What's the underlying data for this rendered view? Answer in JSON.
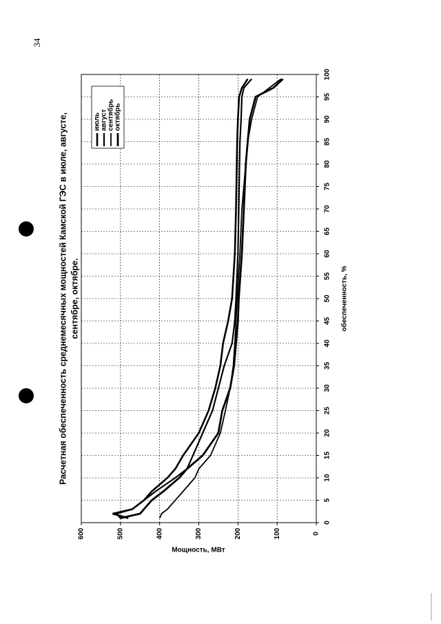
{
  "page_number": "34",
  "chart_data": {
    "type": "line",
    "title": [
      "Расчетная обеспеченность среднемесячных мощностей Камской ГЭС в июле, августе,",
      "сентябре, октябре."
    ],
    "x_label": "обеспеченность, %",
    "y_label": "Мощность, МВт",
    "x": [
      1,
      2,
      3,
      5,
      7,
      10,
      12,
      15,
      20,
      25,
      30,
      35,
      40,
      45,
      50,
      60,
      70,
      80,
      85,
      90,
      95,
      97,
      99
    ],
    "series": [
      {
        "name": "июль",
        "color": "#000000",
        "values": [
          480,
          520,
          470,
          440,
          420,
          380,
          360,
          340,
          300,
          275,
          258,
          245,
          238,
          225,
          215,
          208,
          205,
          203,
          202,
          200,
          197,
          190,
          175
        ]
      },
      {
        "name": "август",
        "color": "#000000",
        "values": [
          500,
          510,
          470,
          440,
          410,
          360,
          330,
          315,
          290,
          265,
          250,
          235,
          215,
          208,
          205,
          200,
          198,
          196,
          195,
          192,
          190,
          185,
          165
        ]
      },
      {
        "name": "сентябрь",
        "color": "#000000",
        "values": [
          400,
          395,
          380,
          360,
          340,
          310,
          300,
          270,
          245,
          232,
          220,
          212,
          208,
          205,
          202,
          195,
          190,
          180,
          175,
          165,
          150,
          120,
          90
        ]
      },
      {
        "name": "октябрь",
        "color": "#000000",
        "values": [
          500,
          450,
          440,
          420,
          390,
          350,
          330,
          290,
          250,
          240,
          220,
          210,
          205,
          200,
          198,
          190,
          185,
          180,
          175,
          170,
          155,
          110,
          85
        ]
      }
    ],
    "xlim": [
      0,
      100
    ],
    "xticks": [
      0,
      5,
      10,
      15,
      20,
      25,
      30,
      35,
      40,
      45,
      50,
      55,
      60,
      65,
      70,
      75,
      80,
      85,
      90,
      95,
      100
    ],
    "ylim": [
      0,
      600
    ],
    "yticks": [
      0,
      100,
      200,
      300,
      400,
      500,
      600
    ],
    "grid": true,
    "legend": "upper-right"
  }
}
